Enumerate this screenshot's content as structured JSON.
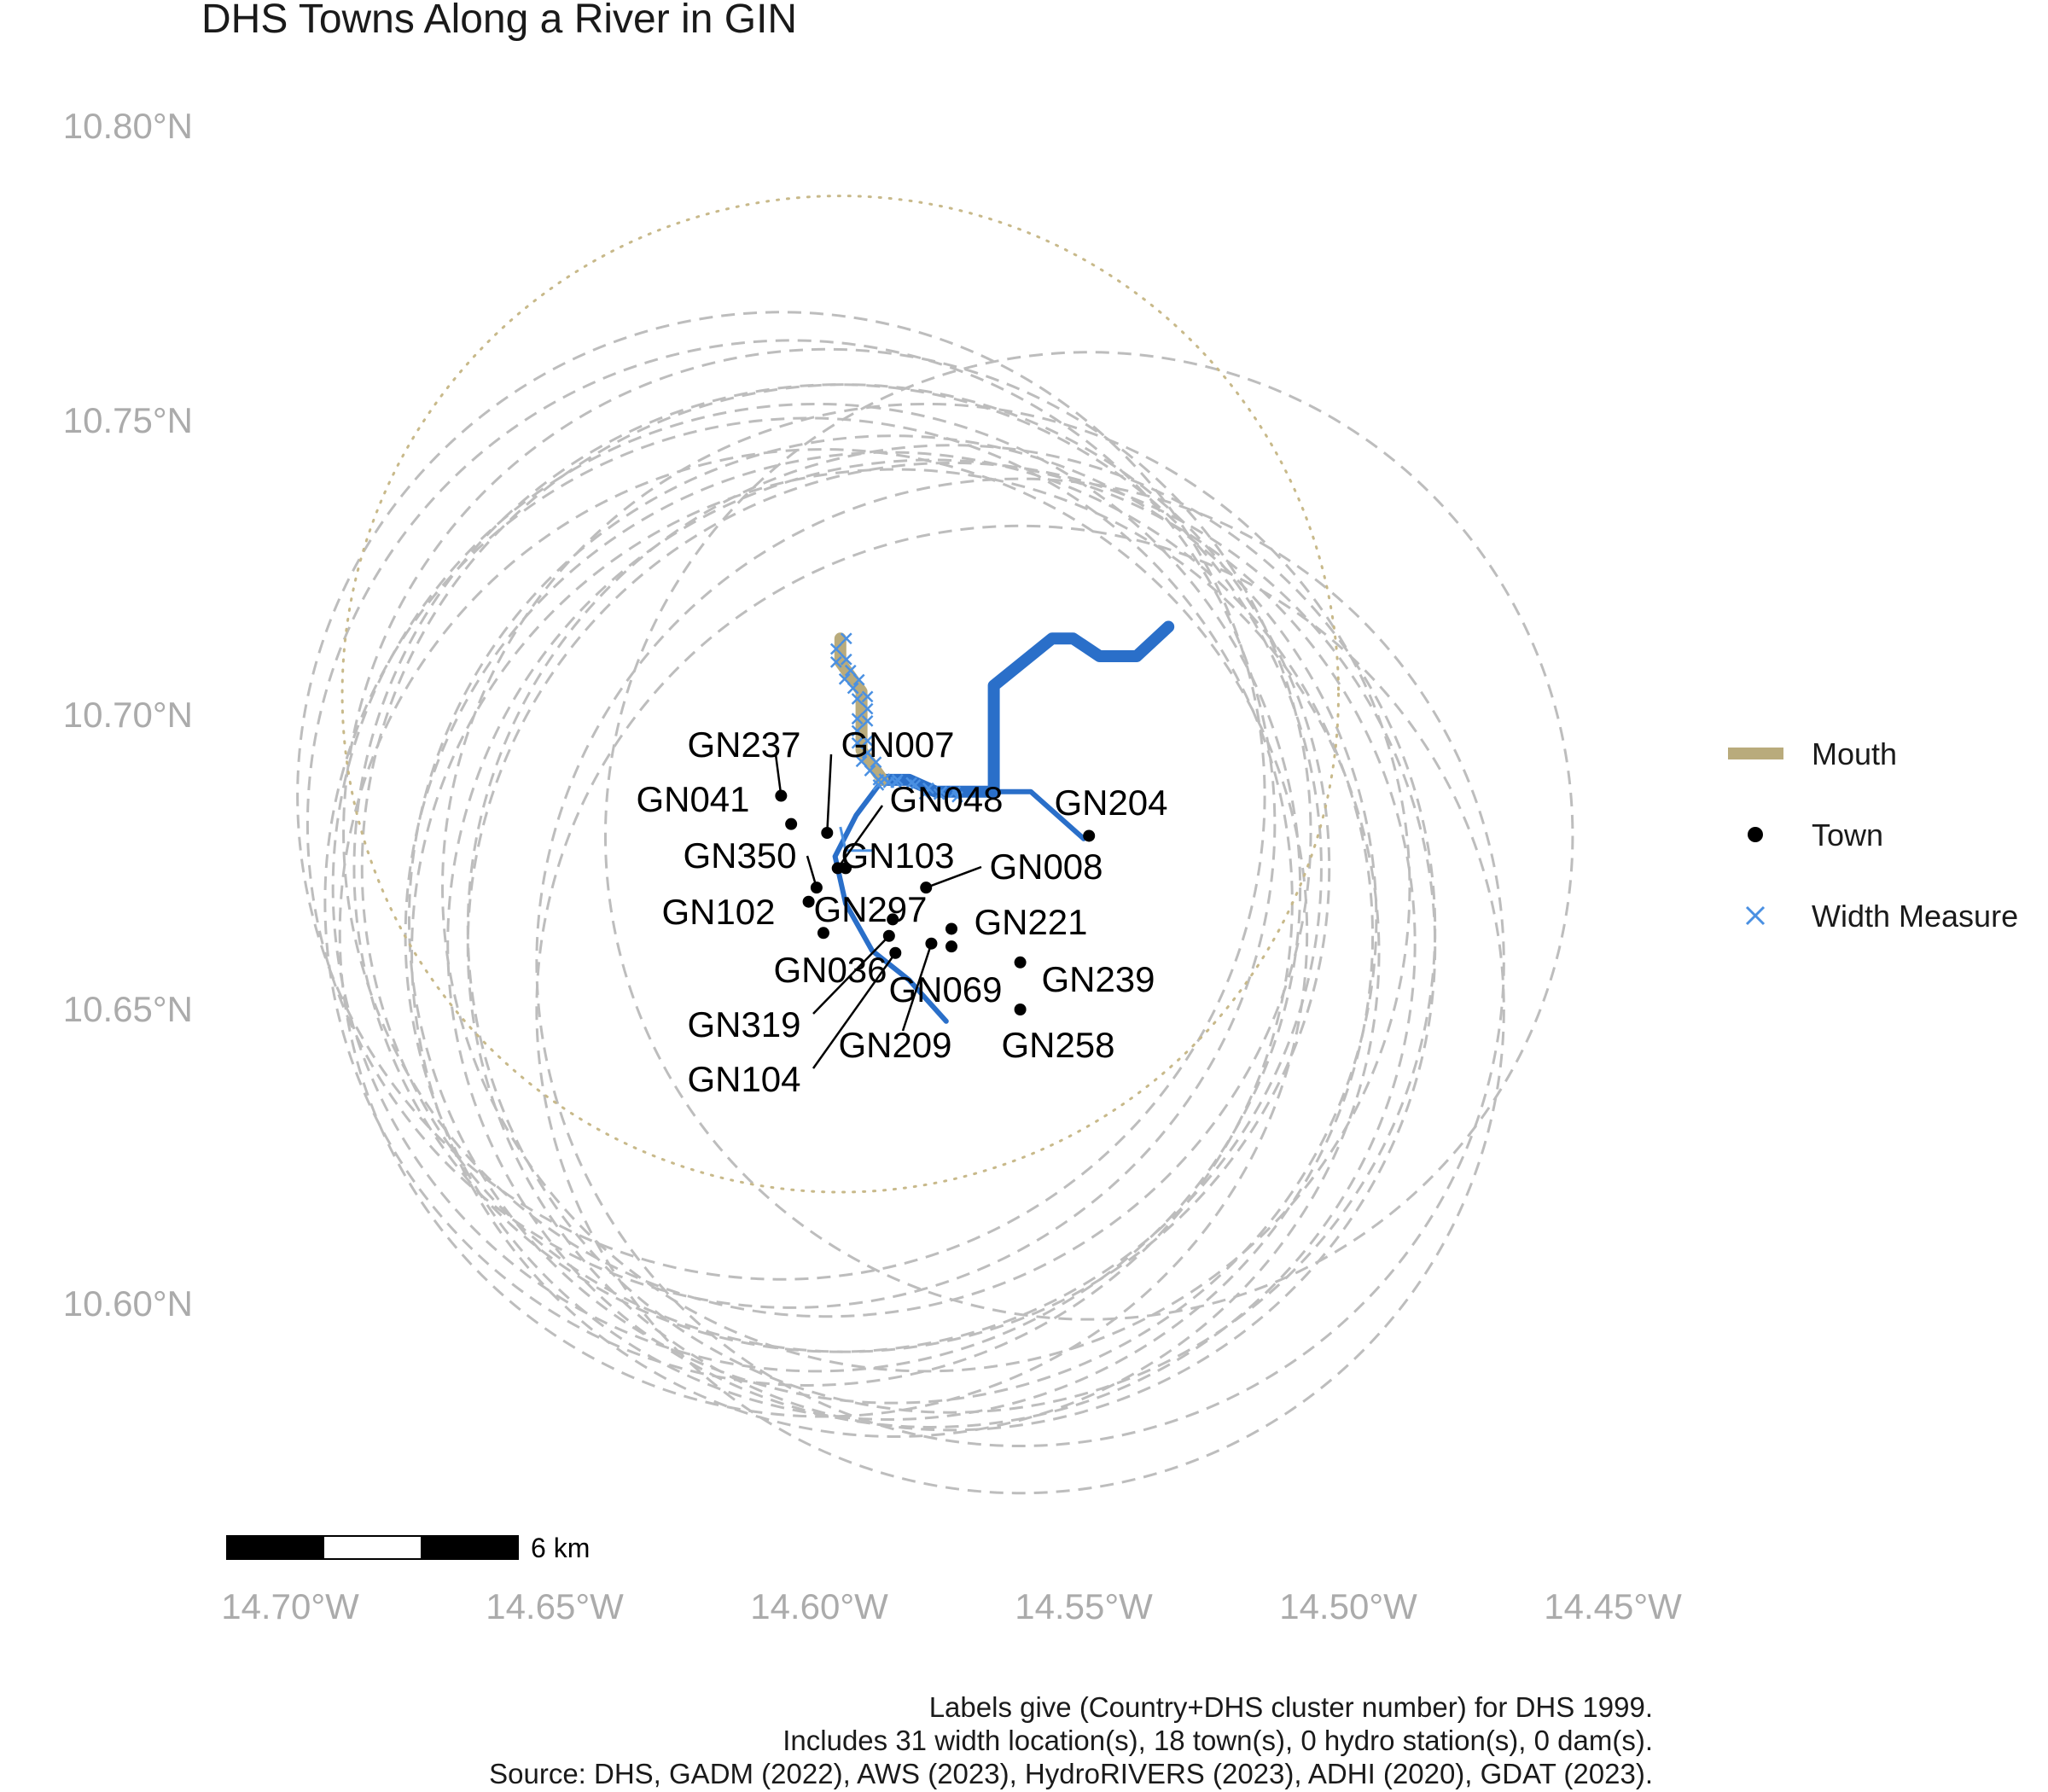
{
  "title": "DHS Towns Along a River in GIN",
  "axes": {
    "y_ticks": [
      "10.80°N",
      "10.75°N",
      "10.70°N",
      "10.65°N",
      "10.60°N"
    ],
    "x_ticks": [
      "14.70°W",
      "14.65°W",
      "14.60°W",
      "14.55°W",
      "14.50°W",
      "14.45°W"
    ]
  },
  "legend": {
    "position": "right",
    "items": [
      {
        "key": "mouth",
        "label": "Mouth",
        "color": "#b9ab7c"
      },
      {
        "key": "town",
        "label": "Town",
        "color": "#000000"
      },
      {
        "key": "width",
        "label": "Width Measure",
        "color": "#4a90e2"
      }
    ]
  },
  "scale_bar": {
    "label": "6 km"
  },
  "caption": [
    "Labels give (Country+DHS cluster number) for DHS 1999.",
    "Includes 31 width location(s), 18 town(s), 0 hydro station(s), 0 dam(s).",
    "Source: DHS, GADM (2022), AWS (2023), HydroRIVERS (2023), ADHI (2020), GDAT (2023)."
  ],
  "colors": {
    "river": "#2a6fc9",
    "width_measure": "#4a90e2",
    "mouth": "#b9ab7c",
    "buffer_circle": "#bdbdbd",
    "axis_text": "#ababab"
  },
  "map_data": {
    "towns": [
      {
        "id": "GN237",
        "lon": -14.6072,
        "lat": 10.6863
      },
      {
        "id": "GN041",
        "lon": -14.6053,
        "lat": 10.6815
      },
      {
        "id": "GN007",
        "lon": -14.5985,
        "lat": 10.68
      },
      {
        "id": "GN048",
        "lon": -14.5965,
        "lat": 10.674
      },
      {
        "id": "GN204",
        "lon": -14.549,
        "lat": 10.6795
      },
      {
        "id": "GN350",
        "lon": -14.6005,
        "lat": 10.6707
      },
      {
        "id": "GN103",
        "lon": -14.595,
        "lat": 10.674
      },
      {
        "id": "GN008",
        "lon": -14.5798,
        "lat": 10.6707
      },
      {
        "id": "GN102",
        "lon": -14.602,
        "lat": 10.6683
      },
      {
        "id": "GN297",
        "lon": -14.5861,
        "lat": 10.6653
      },
      {
        "id": "GN221",
        "lon": -14.575,
        "lat": 10.6637
      },
      {
        "id": "GN036",
        "lon": -14.5992,
        "lat": 10.663
      },
      {
        "id": "GN319",
        "lon": -14.5868,
        "lat": 10.6625
      },
      {
        "id": "GN069",
        "lon": -14.575,
        "lat": 10.6607
      },
      {
        "id": "GN104",
        "lon": -14.5856,
        "lat": 10.6596
      },
      {
        "id": "GN209",
        "lon": -14.5788,
        "lat": 10.6612
      },
      {
        "id": "GN239",
        "lon": -14.562,
        "lat": 10.658
      },
      {
        "id": "GN258",
        "lon": -14.562,
        "lat": 10.65
      }
    ],
    "river_main": [
      [
        -14.588,
        10.689
      ],
      [
        -14.583,
        10.689
      ],
      [
        -14.578,
        10.687
      ],
      [
        -14.572,
        10.687
      ],
      [
        -14.567,
        10.687
      ],
      [
        -14.567,
        10.705
      ],
      [
        -14.556,
        10.713
      ],
      [
        -14.552,
        10.713
      ],
      [
        -14.547,
        10.71
      ],
      [
        -14.54,
        10.71
      ],
      [
        -14.534,
        10.715
      ]
    ],
    "river_branch_w": [
      [
        -14.588,
        10.689
      ],
      [
        -14.593,
        10.683
      ],
      [
        -14.597,
        10.676
      ],
      [
        -14.595,
        10.668
      ],
      [
        -14.59,
        10.66
      ],
      [
        -14.583,
        10.655
      ],
      [
        -14.576,
        10.648
      ]
    ],
    "river_branch_e": [
      [
        -14.567,
        10.687
      ],
      [
        -14.56,
        10.687
      ],
      [
        -14.55,
        10.679
      ]
    ],
    "river_tributary": [
      [
        -14.596,
        10.681
      ],
      [
        -14.595,
        10.677
      ],
      [
        -14.59,
        10.677
      ]
    ],
    "mouth": [
      [
        -14.596,
        10.713
      ],
      [
        -14.596,
        10.709
      ],
      [
        -14.592,
        10.704
      ],
      [
        -14.592,
        10.694
      ],
      [
        -14.588,
        10.689
      ]
    ],
    "buffer_radius_km": 10
  }
}
